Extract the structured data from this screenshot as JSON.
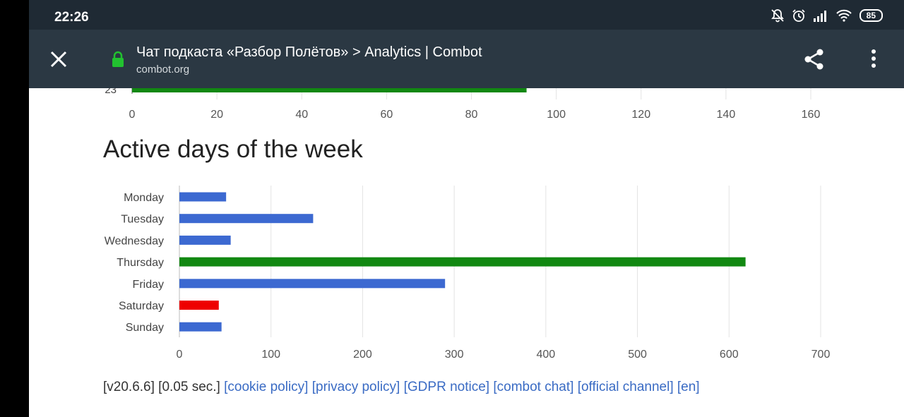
{
  "statusbar": {
    "time": "22:26",
    "battery": "85",
    "icons": [
      "mute-bell-icon",
      "alarm-icon",
      "signal-icon",
      "wifi-icon",
      "battery-icon"
    ]
  },
  "toolbar": {
    "title": "Чат подкаста «Разбор Полётов» > Analytics | Combot",
    "domain": "combot.org",
    "icons": [
      "close-icon",
      "lock-icon",
      "share-icon",
      "more-vert-icon"
    ]
  },
  "top_chart": {
    "visible_category": "23",
    "visible_value": 93,
    "bar_color": "#118811",
    "xlim": [
      0,
      160
    ],
    "xticks": [
      "0",
      "20",
      "40",
      "60",
      "80",
      "100",
      "120",
      "140",
      "160"
    ]
  },
  "section_title": "Active days of the week",
  "chart_data": {
    "type": "bar",
    "orientation": "horizontal",
    "title": "Active days of the week",
    "categories": [
      "Monday",
      "Tuesday",
      "Wednesday",
      "Thursday",
      "Friday",
      "Saturday",
      "Sunday"
    ],
    "values": [
      51,
      146,
      56,
      618,
      290,
      43,
      46
    ],
    "colors": [
      "#3c69d1",
      "#3c69d1",
      "#3c69d1",
      "#118811",
      "#3c69d1",
      "#ee0000",
      "#3c69d1"
    ],
    "xlim": [
      0,
      700
    ],
    "xticks": [
      "0",
      "100",
      "200",
      "300",
      "400",
      "500",
      "600",
      "700"
    ],
    "grid": true
  },
  "footer": {
    "version": "[v20.6.6] [0.05 sec.]",
    "links": [
      "[cookie policy]",
      "[privacy policy]",
      "[GDPR notice]",
      "[combot chat]",
      "[official channel]",
      "[en]"
    ]
  }
}
